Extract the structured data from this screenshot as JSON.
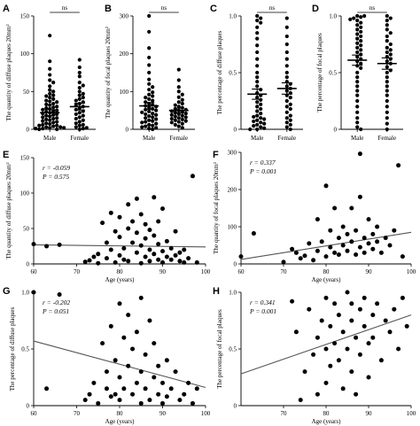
{
  "figure": {
    "panels": [
      "A",
      "B",
      "C",
      "D",
      "E",
      "F",
      "G",
      "H"
    ]
  },
  "chart_data": [
    {
      "panel": "A",
      "type": "scatter",
      "categories": [
        "Male",
        "Female"
      ],
      "ylabel": "The quantity of diffuse plaques 20mm²",
      "ylim": [
        0,
        150
      ],
      "yticks": [
        0,
        50,
        100,
        150
      ],
      "annotation": "ns",
      "means": [
        22,
        30
      ],
      "sems": [
        4,
        4.5
      ],
      "series": [
        {
          "name": "Male",
          "values": [
            124,
            90,
            80,
            72,
            65,
            62,
            57,
            52,
            50,
            47,
            45,
            44,
            42,
            40,
            38,
            37,
            36,
            34,
            33,
            32,
            30,
            29,
            28,
            27,
            26,
            25,
            24,
            23,
            22,
            21,
            20,
            19,
            18,
            17,
            16,
            15,
            14,
            13,
            12,
            11,
            10,
            9,
            8,
            7,
            6,
            5,
            5,
            4,
            3,
            3,
            2,
            2,
            1,
            1,
            0,
            0
          ]
        },
        {
          "name": "Female",
          "values": [
            92,
            82,
            75,
            70,
            62,
            58,
            55,
            50,
            47,
            45,
            42,
            40,
            38,
            36,
            34,
            32,
            30,
            28,
            26,
            24,
            22,
            20,
            18,
            16,
            14,
            12,
            10,
            8,
            6,
            5,
            3,
            2,
            1,
            0
          ]
        }
      ]
    },
    {
      "panel": "B",
      "type": "scatter",
      "categories": [
        "Male",
        "Female"
      ],
      "ylabel": "The quantity of focal plaques 20mm²",
      "ylim": [
        0,
        300
      ],
      "yticks": [
        0,
        100,
        200,
        300
      ],
      "annotation": "ns",
      "means": [
        62,
        50
      ],
      "sems": [
        9,
        6
      ],
      "series": [
        {
          "name": "Male",
          "values": [
            300,
            258,
            215,
            190,
            170,
            150,
            132,
            120,
            112,
            105,
            98,
            92,
            88,
            84,
            80,
            76,
            72,
            68,
            65,
            62,
            60,
            57,
            54,
            52,
            50,
            47,
            45,
            42,
            40,
            38,
            35,
            32,
            30,
            27,
            24,
            22,
            20,
            18,
            15,
            12,
            10,
            8,
            6,
            4,
            2,
            0
          ]
        },
        {
          "name": "Female",
          "values": [
            158,
            130,
            112,
            100,
            92,
            85,
            78,
            72,
            68,
            64,
            60,
            57,
            54,
            52,
            50,
            48,
            46,
            44,
            42,
            40,
            38,
            36,
            34,
            32,
            30,
            28,
            26,
            24,
            22,
            20,
            18,
            15,
            12,
            8,
            4
          ]
        }
      ]
    },
    {
      "panel": "C",
      "type": "scatter",
      "categories": [
        "Male",
        "Female"
      ],
      "ylabel": "The percentage of diffuse plaques",
      "ylim": [
        0,
        1.0
      ],
      "yticks": [
        0,
        0.5,
        1.0
      ],
      "annotation": "ns",
      "means": [
        0.31,
        0.36
      ],
      "sems": [
        0.045,
        0.05
      ],
      "series": [
        {
          "name": "Male",
          "values": [
            1.0,
            0.98,
            0.96,
            0.94,
            0.9,
            0.85,
            0.8,
            0.74,
            0.68,
            0.62,
            0.56,
            0.5,
            0.46,
            0.42,
            0.38,
            0.35,
            0.32,
            0.3,
            0.28,
            0.26,
            0.24,
            0.22,
            0.2,
            0.18,
            0.16,
            0.14,
            0.12,
            0.11,
            0.1,
            0.09,
            0.08,
            0.07,
            0.06,
            0.05,
            0.04,
            0.03,
            0.02,
            0.01,
            0.0,
            0.0
          ]
        },
        {
          "name": "Female",
          "values": [
            0.98,
            0.9,
            0.82,
            0.75,
            0.68,
            0.62,
            0.56,
            0.5,
            0.46,
            0.42,
            0.4,
            0.38,
            0.36,
            0.34,
            0.32,
            0.3,
            0.28,
            0.25,
            0.22,
            0.2,
            0.18,
            0.15,
            0.12,
            0.1,
            0.08,
            0.06,
            0.04,
            0.02,
            0.0
          ]
        }
      ]
    },
    {
      "panel": "D",
      "type": "scatter",
      "categories": [
        "Male",
        "Female"
      ],
      "ylabel": "The percentage of focal plaques",
      "ylim": [
        0,
        1.0
      ],
      "yticks": [
        0,
        0.5,
        1.0
      ],
      "annotation": "ns",
      "means": [
        0.61,
        0.58
      ],
      "sems": [
        0.045,
        0.05
      ],
      "series": [
        {
          "name": "Male",
          "values": [
            1.0,
            1.0,
            0.99,
            0.98,
            0.97,
            0.96,
            0.94,
            0.92,
            0.9,
            0.88,
            0.86,
            0.84,
            0.82,
            0.8,
            0.78,
            0.76,
            0.74,
            0.72,
            0.7,
            0.68,
            0.66,
            0.64,
            0.62,
            0.6,
            0.58,
            0.56,
            0.54,
            0.5,
            0.46,
            0.42,
            0.38,
            0.34,
            0.3,
            0.25,
            0.2,
            0.15,
            0.1,
            0.06,
            0.02,
            0.0
          ]
        },
        {
          "name": "Female",
          "values": [
            1.0,
            0.98,
            0.96,
            0.92,
            0.88,
            0.85,
            0.82,
            0.78,
            0.75,
            0.72,
            0.7,
            0.68,
            0.66,
            0.64,
            0.62,
            0.6,
            0.58,
            0.55,
            0.52,
            0.5,
            0.46,
            0.42,
            0.38,
            0.34,
            0.3,
            0.25,
            0.2,
            0.15,
            0.1,
            0.05,
            0.0
          ]
        }
      ]
    },
    {
      "panel": "E",
      "type": "scatter",
      "xlabel": "Age (years)",
      "ylabel": "The quantity of diffuse plaques 20mm²",
      "xlim": [
        60,
        100
      ],
      "ylim": [
        0,
        150
      ],
      "xticks": [
        60,
        70,
        80,
        90,
        100
      ],
      "yticks": [
        0,
        50,
        100,
        150
      ],
      "annotation": [
        "r = -0.059",
        "P = 0.575"
      ],
      "fit": {
        "x": [
          60,
          100
        ],
        "y": [
          27,
          24
        ]
      },
      "points": {
        "x": [
          60,
          63,
          66,
          72,
          73,
          74,
          75,
          75,
          76,
          77,
          77,
          78,
          78,
          79,
          79,
          80,
          80,
          80,
          81,
          81,
          82,
          82,
          82,
          83,
          83,
          84,
          84,
          84,
          85,
          85,
          85,
          86,
          86,
          86,
          87,
          87,
          87,
          88,
          88,
          88,
          89,
          89,
          89,
          90,
          90,
          90,
          91,
          91,
          92,
          92,
          93,
          93,
          94,
          94,
          95,
          95,
          96,
          97,
          98
        ],
        "y": [
          28,
          25,
          27,
          3,
          5,
          10,
          1,
          14,
          58,
          8,
          30,
          20,
          72,
          2,
          46,
          12,
          38,
          66,
          6,
          22,
          50,
          84,
          4,
          30,
          60,
          16,
          44,
          92,
          1,
          26,
          70,
          10,
          36,
          56,
          4,
          20,
          48,
          14,
          40,
          94,
          6,
          28,
          60,
          2,
          18,
          78,
          10,
          32,
          6,
          22,
          12,
          46,
          4,
          16,
          2,
          20,
          8,
          124,
          2
        ]
      }
    },
    {
      "panel": "F",
      "type": "scatter",
      "xlabel": "Age (years)",
      "ylabel": "The quantity of focal plaques 20mm²",
      "xlim": [
        60,
        100
      ],
      "ylim": [
        0,
        300
      ],
      "xticks": [
        60,
        70,
        80,
        90,
        100
      ],
      "yticks": [
        0,
        100,
        200,
        300
      ],
      "annotation": [
        "r = 0.337",
        "P = 0.001"
      ],
      "fit": {
        "x": [
          60,
          100
        ],
        "y": [
          12,
          85
        ]
      },
      "points": {
        "x": [
          60,
          63,
          70,
          72,
          73,
          74,
          75,
          76,
          77,
          78,
          78,
          79,
          80,
          80,
          81,
          81,
          82,
          82,
          83,
          83,
          84,
          84,
          85,
          85,
          86,
          86,
          87,
          87,
          88,
          88,
          88,
          89,
          89,
          90,
          90,
          91,
          91,
          92,
          92,
          93,
          94,
          95,
          96,
          97,
          98
        ],
        "y": [
          20,
          82,
          5,
          40,
          30,
          15,
          22,
          55,
          10,
          35,
          120,
          60,
          20,
          210,
          45,
          90,
          30,
          150,
          70,
          25,
          50,
          100,
          80,
          35,
          60,
          150,
          25,
          90,
          45,
          180,
          296,
          70,
          30,
          120,
          55,
          40,
          80,
          60,
          100,
          30,
          70,
          50,
          90,
          265,
          20
        ]
      }
    },
    {
      "panel": "G",
      "type": "scatter",
      "xlabel": "Age (years)",
      "ylabel": "The percentage of diffuse plaques",
      "xlim": [
        60,
        100
      ],
      "ylim": [
        0,
        1.0
      ],
      "xticks": [
        60,
        70,
        80,
        90,
        100
      ],
      "yticks": [
        0,
        0.5,
        1.0
      ],
      "annotation": [
        "r = -0.202",
        "P = 0.051"
      ],
      "fit": {
        "x": [
          60,
          100
        ],
        "y": [
          0.57,
          0.16
        ]
      },
      "points": {
        "x": [
          60,
          63,
          66,
          72,
          73,
          74,
          75,
          76,
          77,
          77,
          78,
          78,
          79,
          79,
          80,
          80,
          80,
          81,
          81,
          82,
          82,
          83,
          83,
          84,
          84,
          85,
          85,
          85,
          86,
          86,
          87,
          87,
          88,
          88,
          89,
          89,
          90,
          90,
          91,
          91,
          92,
          93,
          94,
          95,
          96,
          97,
          98
        ],
        "y": [
          1.0,
          0.15,
          0.98,
          0.05,
          0.1,
          0.2,
          0.02,
          0.55,
          0.15,
          0.3,
          0.08,
          0.7,
          0.4,
          0.1,
          0.9,
          0.25,
          0.05,
          0.6,
          0.15,
          0.35,
          0.8,
          0.1,
          0.5,
          0.2,
          0.65,
          0.02,
          0.3,
          0.95,
          0.15,
          0.45,
          0.05,
          0.75,
          0.25,
          0.55,
          0.1,
          0.35,
          0.02,
          0.2,
          0.4,
          0.08,
          0.15,
          0.3,
          0.05,
          0.1,
          0.2,
          0.02,
          0.15
        ]
      }
    },
    {
      "panel": "H",
      "type": "scatter",
      "xlabel": "Age (years)",
      "ylabel": "The percentage of focal plaques",
      "xlim": [
        60,
        100
      ],
      "ylim": [
        0,
        1.0
      ],
      "xticks": [
        70,
        80,
        90,
        100
      ],
      "yticks": [
        0,
        0.5,
        1.0
      ],
      "annotation": [
        "r = 0.341",
        "P = 0.001"
      ],
      "fit": {
        "x": [
          60,
          100
        ],
        "y": [
          0.28,
          0.8
        ]
      },
      "points": {
        "x": [
          72,
          73,
          74,
          75,
          76,
          77,
          78,
          78,
          79,
          80,
          80,
          80,
          81,
          81,
          82,
          82,
          83,
          83,
          84,
          84,
          85,
          85,
          86,
          86,
          86,
          87,
          87,
          88,
          88,
          89,
          89,
          90,
          90,
          91,
          91,
          92,
          93,
          94,
          95,
          96,
          97,
          98,
          99
        ],
        "y": [
          0.92,
          0.65,
          0.05,
          0.3,
          0.85,
          0.45,
          0.6,
          0.1,
          0.75,
          0.95,
          0.5,
          0.2,
          0.7,
          0.35,
          0.9,
          0.55,
          0.4,
          0.8,
          0.65,
          0.15,
          1.0,
          0.5,
          0.75,
          0.3,
          0.9,
          0.6,
          0.1,
          0.85,
          0.45,
          0.7,
          0.95,
          0.55,
          0.25,
          0.8,
          0.6,
          0.9,
          0.4,
          0.75,
          0.65,
          0.85,
          0.5,
          0.95,
          0.7
        ]
      }
    }
  ]
}
